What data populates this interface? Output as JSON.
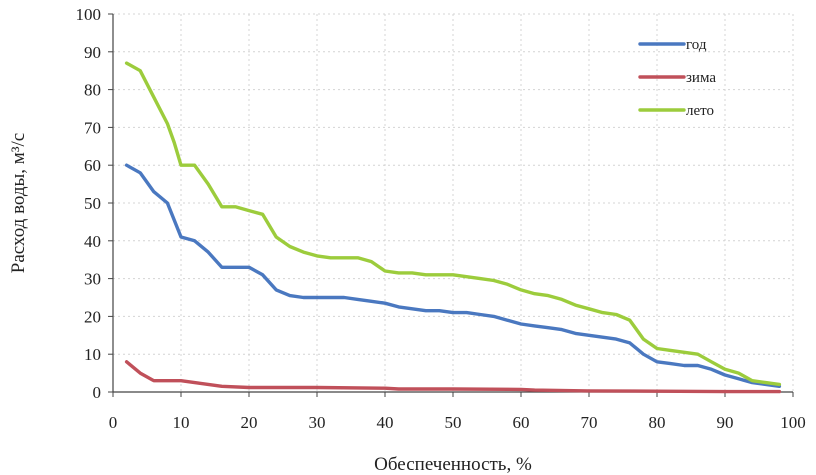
{
  "chart_data": {
    "type": "line",
    "title": "",
    "xlabel": "Обеспеченность, %",
    "ylabel": "Расход воды, м³/с",
    "xlim": [
      0,
      100
    ],
    "ylim": [
      0,
      100
    ],
    "xticks": [
      0,
      10,
      20,
      30,
      40,
      50,
      60,
      70,
      80,
      90,
      100
    ],
    "yticks": [
      0,
      10,
      20,
      30,
      40,
      50,
      60,
      70,
      80,
      90,
      100
    ],
    "grid": true,
    "legend_position": "top-right",
    "series": [
      {
        "name": "год",
        "color": "#4a78c0",
        "x": [
          2,
          4,
          6,
          8,
          10,
          12,
          14,
          16,
          18,
          20,
          22,
          24,
          26,
          28,
          30,
          32,
          34,
          36,
          38,
          40,
          42,
          44,
          46,
          48,
          50,
          52,
          54,
          56,
          58,
          60,
          62,
          64,
          66,
          68,
          70,
          72,
          74,
          76,
          78,
          80,
          82,
          84,
          86,
          88,
          90,
          92,
          94,
          96,
          98
        ],
        "y": [
          60,
          58,
          53,
          50,
          41,
          40,
          37,
          33,
          33,
          33,
          31,
          27,
          25.5,
          25,
          25,
          25,
          25,
          24.5,
          24,
          23.5,
          22.5,
          22,
          21.5,
          21.5,
          21,
          21,
          20.5,
          20,
          19,
          18,
          17.5,
          17,
          16.5,
          15.5,
          15,
          14.5,
          14,
          13,
          10,
          8,
          7.5,
          7,
          7,
          6,
          4.5,
          3.5,
          2.5,
          2,
          1.5
        ]
      },
      {
        "name": "зима",
        "color": "#c0505a",
        "x": [
          2,
          4,
          6,
          8,
          10,
          12,
          14,
          16,
          20,
          30,
          40,
          42,
          50,
          60,
          62,
          70,
          80,
          90,
          98
        ],
        "y": [
          8,
          5,
          3,
          3,
          3,
          2.5,
          2,
          1.5,
          1.2,
          1.2,
          1,
          0.8,
          0.8,
          0.7,
          0.5,
          0.3,
          0.2,
          0.1,
          0.1
        ]
      },
      {
        "name": "лето",
        "color": "#9ccc3c",
        "x": [
          2,
          4,
          6,
          8,
          9,
          10,
          12,
          14,
          16,
          18,
          20,
          22,
          24,
          26,
          28,
          30,
          32,
          34,
          36,
          38,
          40,
          42,
          44,
          46,
          48,
          50,
          52,
          54,
          56,
          58,
          60,
          62,
          64,
          66,
          68,
          70,
          72,
          74,
          76,
          78,
          80,
          82,
          84,
          86,
          88,
          90,
          92,
          94,
          96,
          98
        ],
        "y": [
          87,
          85,
          78,
          71,
          66,
          60,
          60,
          55,
          49,
          49,
          48,
          47,
          41,
          38.5,
          37,
          36,
          35.5,
          35.5,
          35.5,
          34.5,
          32,
          31.5,
          31.5,
          31,
          31,
          31,
          30.5,
          30,
          29.5,
          28.5,
          27,
          26,
          25.5,
          24.5,
          23,
          22,
          21,
          20.5,
          19,
          14,
          11.5,
          11,
          10.5,
          10,
          8,
          6,
          5,
          3,
          2.5,
          2
        ]
      }
    ]
  }
}
